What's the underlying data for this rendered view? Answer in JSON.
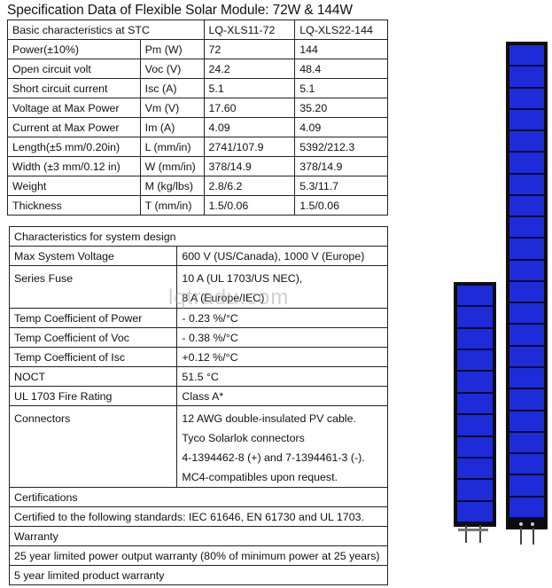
{
  "title": "Specification Data of Flexible Solar Module: 72W & 144W",
  "spec_table": {
    "header": [
      "Basic characteristics at STC",
      "",
      "LQ-XLS11-72",
      "LQ-XLS22-144"
    ],
    "rows": [
      [
        "Power(±10%)",
        "Pm (W)",
        "72",
        "144"
      ],
      [
        "Open circuit volt",
        "Voc (V)",
        "24.2",
        "48.4"
      ],
      [
        "Short circuit current",
        "Isc (A)",
        "5.1",
        "5.1"
      ],
      [
        "Voltage at Max Power",
        "Vm (V)",
        "17.60",
        "35.20"
      ],
      [
        "Current at Max Power",
        "Im (A)",
        "4.09",
        "4.09"
      ],
      [
        "Length(±5 mm/0.20in)",
        "L (mm/in)",
        "2741/107.9",
        "5392/212.3"
      ],
      [
        "Width (±3 mm/0.12 in)",
        "W (mm/in)",
        "378/14.9",
        "378/14.9"
      ],
      [
        "Weight",
        "M (kg/lbs)",
        "2.8/6.2",
        "5.3/11.7"
      ],
      [
        "Thickness",
        "T (mm/in)",
        "1.5/0.06",
        "1.5/0.06"
      ]
    ]
  },
  "system_table": {
    "header": "Characteristics for system design",
    "rows": [
      {
        "label": "Max System Voltage",
        "value": "600 V (US/Canada), 1000 V (Europe)"
      },
      {
        "label": "Series Fuse",
        "value": "10 A (UL 1703/US NEC),\n8 A (Europe/IEC)"
      },
      {
        "label": "Temp Coefficient of Power",
        "value": "- 0.23 %/°C"
      },
      {
        "label": "Temp Coefficient of Voc",
        "value": "- 0.38 %/°C"
      },
      {
        "label": "Temp Coefficient of Isc",
        "value": "+0.12 %/°C"
      },
      {
        "label": "NOCT",
        "value": "51.5 °C"
      },
      {
        "label": "UL 1703 Fire Rating",
        "value": "Class A*"
      },
      {
        "label": "Connectors",
        "value": "12 AWG double-insulated PV cable.\nTyco Solarlok connectors\n4-1394462-8 (+) and 7-1394461-3 (-).\nMC4-compatibles upon request."
      }
    ],
    "certifications_label": "Certifications",
    "certifications_text": "Certified to the following standards: IEC 61646, EN 61730 and UL 1703.",
    "warranty_label": "Warranty",
    "warranty_rows": [
      "25 year limited power output warranty (80% of minimum power at 25 years)",
      "5 year limited product warranty"
    ]
  },
  "watermark": "lqtradu.com",
  "panel_color": "#1e2bd8"
}
